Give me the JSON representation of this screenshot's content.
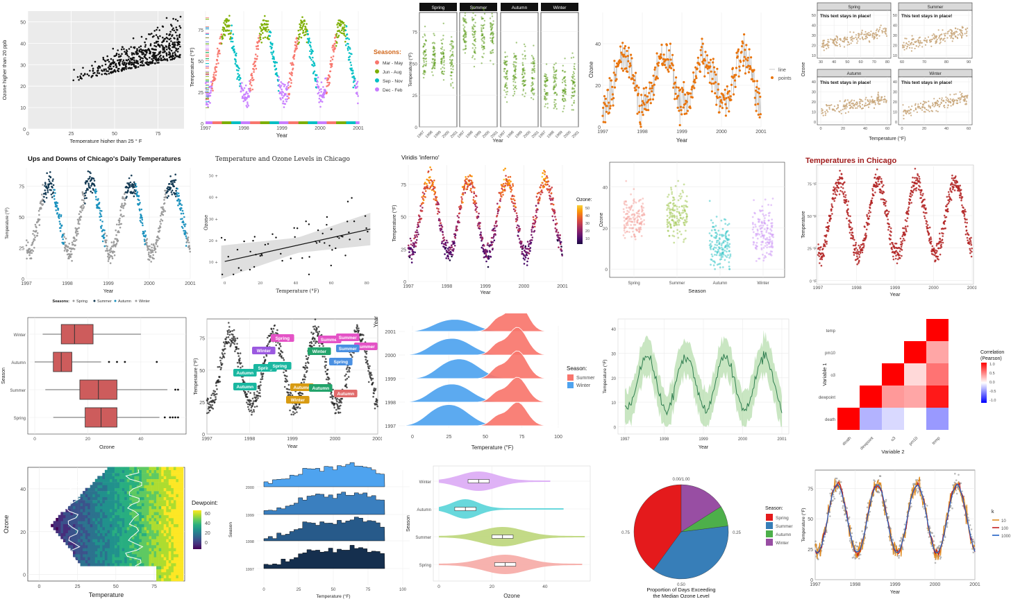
{
  "colors": {
    "panel_grey": "#ebebeb",
    "grid_light": "#e6e6e6",
    "spring": "#f8766d",
    "summer": "#7cae00",
    "autumn": "#00bfc4",
    "winter": "#c77cff",
    "orange": "#e9740c",
    "green": "#5b9a1a",
    "tan": "#c9a77c",
    "darkred": "#b22222",
    "boxfill": "#cd5c5c",
    "blue": "#4ea3ef",
    "salmon": "#f8766d",
    "setred": "#e41a1c",
    "setblue": "#377eb8",
    "setgreen": "#4daf4a",
    "setpurple": "#984ea3"
  },
  "chart_data": [
    {
      "id": "p1",
      "type": "scatter",
      "xlabel": "Temperature higher than 25 ° F",
      "ylabel": "Ozone higher than 20 ppb",
      "xlim": [
        0,
        90
      ],
      "ylim": [
        0,
        55
      ],
      "xticks": [
        "0",
        "25",
        "50",
        "75"
      ],
      "yticks": [
        "0",
        "10",
        "20",
        "30",
        "40",
        "50"
      ],
      "grid": "grey-background"
    },
    {
      "id": "p2",
      "type": "scatter",
      "ylabel": "Temperature (°F)",
      "xlabel": "Year",
      "xticks": [
        "1997",
        "1998",
        "1999",
        "2000",
        "2001"
      ],
      "yticks": [
        "0",
        "25",
        "50",
        "75"
      ],
      "legend_title": "Seasons:",
      "legend_placement": "right",
      "series": [
        {
          "name": "Mar - May",
          "color": "#f8766d"
        },
        {
          "name": "Jun - Aug",
          "color": "#7cae00"
        },
        {
          "name": "Sep - Nov",
          "color": "#00bfc4"
        },
        {
          "name": "Dec - Feb",
          "color": "#c77cff"
        }
      ]
    },
    {
      "id": "p3",
      "type": "scatter",
      "facets": [
        "Spring",
        "Summer",
        "Autumn",
        "Winter"
      ],
      "ylabel": "Temperature (°F)",
      "xlabel": "Year",
      "xticks": [
        "1997",
        "1998",
        "1999",
        "2000",
        "2001"
      ],
      "yticks": [
        "0",
        "25",
        "50",
        "75"
      ]
    },
    {
      "id": "p4",
      "type": "line",
      "ylabel": "Ozone",
      "xlabel": "Year",
      "xticks": [
        "1997",
        "1998",
        "1999",
        "2000",
        "2001"
      ],
      "yticks": [
        "0",
        "20",
        "40"
      ],
      "series": [
        {
          "name": "line"
        },
        {
          "name": "points"
        }
      ],
      "legend_placement": "right"
    },
    {
      "id": "p5",
      "type": "scatter",
      "facets": [
        "Spring",
        "Summer",
        "Autumn",
        "Winter"
      ],
      "annotation": "This text stays in place!",
      "ylabel": "Ozone",
      "xlabel": "Temperature (°F)",
      "facet_xticks": [
        [
          "30",
          "40",
          "50",
          "60",
          "70",
          "80"
        ],
        [
          "60",
          "70",
          "80",
          "90"
        ],
        [
          "0",
          "20",
          "40",
          "60"
        ],
        [
          "0",
          "20",
          "40",
          "60"
        ]
      ],
      "facet_yticks": [
        [
          "10",
          "20",
          "30",
          "40",
          "50"
        ],
        [
          "10",
          "20",
          "30",
          "40",
          "50"
        ],
        [
          "0",
          "10",
          "20",
          "30",
          "40"
        ],
        [
          "0",
          "10",
          "20",
          "30",
          "40"
        ]
      ]
    },
    {
      "id": "p6",
      "type": "scatter",
      "title": "Ups and Downs of Chicago's Daily Temperatures",
      "ylabel": "Temperature (°F)",
      "xlabel": "Year",
      "xticks": [
        "1997",
        "1998",
        "1999",
        "2000",
        "2001"
      ],
      "yticks": [
        "0",
        "25",
        "50",
        "75"
      ],
      "legend_title": "Seasons:",
      "legend_placement": "bottom",
      "series": [
        {
          "name": "Spring",
          "color": "#9a9a9a"
        },
        {
          "name": "Summer",
          "color": "#0f3650"
        },
        {
          "name": "Autumn",
          "color": "#178fbd"
        },
        {
          "name": "Winter",
          "color": "#9a9a9a"
        }
      ]
    },
    {
      "id": "p7",
      "type": "scatter",
      "title": "Temperature and Ozone Levels in Chicago",
      "ylabel": "Ozone",
      "xlabel": "Temperature (°F)",
      "xticks": [
        "0",
        "20",
        "40",
        "60",
        "80"
      ],
      "yticks": [
        "10 +",
        "20 +",
        "30 +",
        "40 +",
        "50 +"
      ],
      "fit": {
        "method": "linear",
        "x": [
          0,
          82
        ],
        "y": [
          10,
          25
        ]
      }
    },
    {
      "id": "p8",
      "type": "scatter",
      "title": "Viridis 'inferno'",
      "ylabel": "Temperature (°F)",
      "xlabel": "Year",
      "xticks": [
        "1997",
        "1998",
        "1999",
        "2000",
        "2001"
      ],
      "yticks": [
        "0",
        "25",
        "50",
        "75"
      ],
      "legend_title": "Ozone:",
      "legend_ticks": [
        "50",
        "40",
        "30",
        "20",
        "10"
      ]
    },
    {
      "id": "p9",
      "type": "scatter",
      "ylabel": "Ozone",
      "xlabel": "Season",
      "categories": [
        "Spring",
        "Summer",
        "Autumn",
        "Winter"
      ],
      "yticks": [
        "0",
        "20",
        "40"
      ],
      "series_colors": [
        "#f4a6a0",
        "#a3c955",
        "#3bc6c9",
        "#cf9cf5"
      ]
    },
    {
      "id": "p10",
      "type": "scatter",
      "title": "Temperatures in Chicago",
      "ylabel": "Temperature",
      "xlabel": "Year",
      "xticks": [
        "1997",
        "1998",
        "1999",
        "2000",
        "2001"
      ],
      "yticks": [
        "0 °F",
        "25 °F",
        "50 °F",
        "75 °F"
      ]
    },
    {
      "id": "p11",
      "type": "box",
      "ylabel": "Season",
      "xlabel": "Ozone",
      "categories": [
        "Winter",
        "Autumn",
        "Summer",
        "Spring"
      ],
      "xticks": [
        "0",
        "20",
        "40"
      ],
      "boxes": [
        {
          "name": "Winter",
          "min": 3,
          "q1": 10,
          "median": 15,
          "q3": 22,
          "max": 40,
          "outliers": []
        },
        {
          "name": "Autumn",
          "min": 0,
          "q1": 7,
          "median": 10,
          "q3": 14,
          "max": 25,
          "outliers": [
            28,
            31,
            34,
            46
          ]
        },
        {
          "name": "Summer",
          "min": 4,
          "q1": 17,
          "median": 24,
          "q3": 31,
          "max": 50,
          "outliers": [
            53,
            54
          ]
        },
        {
          "name": "Spring",
          "min": 7,
          "q1": 19,
          "median": 25,
          "q3": 31,
          "max": 47,
          "outliers": [
            49,
            51,
            52,
            53,
            54
          ]
        }
      ]
    },
    {
      "id": "p12",
      "type": "scatter",
      "ylabel": "Temperature (°F)",
      "xlabel": "Year",
      "xticks": [
        "1997",
        "1998",
        "1999",
        "2000",
        "2001"
      ],
      "yticks": [
        "0",
        "25",
        "50",
        "75"
      ],
      "annotations": [
        {
          "label": "Summer",
          "season": "Summer"
        },
        {
          "label": "Summer",
          "season": "Summer"
        },
        {
          "label": "Summer",
          "season": "Summer"
        },
        {
          "label": "Summer",
          "season": "Summer"
        },
        {
          "label": "Spring",
          "season": "Spring"
        },
        {
          "label": "Spring",
          "season": "Spring"
        },
        {
          "label": "Spring",
          "season": "Spring"
        },
        {
          "label": "Spring",
          "season": "Spring"
        },
        {
          "label": "Winter",
          "season": "Winter"
        },
        {
          "label": "Winter",
          "season": "Winter"
        },
        {
          "label": "Autumn",
          "season": "Autumn"
        },
        {
          "label": "Autumn",
          "season": "Autumn"
        },
        {
          "label": "Autumn",
          "season": "Autumn"
        },
        {
          "label": "Autumn",
          "season": "Autumn"
        },
        {
          "label": "Autumn",
          "season": "Autumn"
        },
        {
          "label": "Winter",
          "season": "Winter"
        }
      ]
    },
    {
      "id": "p13",
      "type": "area",
      "subtype": "ridgeline",
      "ylabel": "Year",
      "xlabel": "Temperature (°F)",
      "categories": [
        "2001",
        "2000",
        "1999",
        "1998",
        "1997"
      ],
      "xticks": [
        "0",
        "25",
        "50",
        "75",
        "100"
      ],
      "legend_title": "Season:",
      "series": [
        {
          "name": "Summer",
          "color": "#f8766d"
        },
        {
          "name": "Winter",
          "color": "#4ea3ef"
        }
      ]
    },
    {
      "id": "p14",
      "type": "line",
      "ylabel": "Temperature (°F)",
      "xlabel": "Year",
      "xticks": [
        "1997",
        "1998",
        "1999",
        "2000",
        "2001"
      ],
      "yticks": [
        "0",
        "10",
        "20",
        "30",
        "40"
      ]
    },
    {
      "id": "p15",
      "type": "heatmap",
      "ylabel": "Variable 1",
      "xlabel": "Variable 2",
      "categories": [
        "death",
        "dewpoint",
        "o3",
        "pm10",
        "temp"
      ],
      "legend_title": "Correlation\n(Pearson)",
      "legend_ticks": [
        "1.0",
        "0.5",
        "0.0",
        "-0.5",
        "-1.0"
      ],
      "cells": [
        [
          {
            "x": "death",
            "y": "death",
            "r": 1.0
          }
        ],
        [
          {
            "x": "dewpoint",
            "y": "death",
            "r": -0.3
          },
          {
            "x": "dewpoint",
            "y": "dewpoint",
            "r": 1.0
          }
        ],
        [
          {
            "x": "o3",
            "y": "death",
            "r": -0.15
          },
          {
            "x": "o3",
            "y": "dewpoint",
            "r": 0.4
          },
          {
            "x": "o3",
            "y": "o3",
            "r": 1.0
          }
        ],
        [
          {
            "x": "pm10",
            "y": "death",
            "r": 0.0
          },
          {
            "x": "pm10",
            "y": "dewpoint",
            "r": 0.35
          },
          {
            "x": "pm10",
            "y": "o3",
            "r": 0.15
          },
          {
            "x": "pm10",
            "y": "pm10",
            "r": 1.0
          }
        ],
        [
          {
            "x": "temp",
            "y": "death",
            "r": -0.4
          },
          {
            "x": "temp",
            "y": "dewpoint",
            "r": 0.9
          },
          {
            "x": "temp",
            "y": "o3",
            "r": 0.55
          },
          {
            "x": "temp",
            "y": "pm10",
            "r": 0.35
          },
          {
            "x": "temp",
            "y": "temp",
            "r": 1.0
          }
        ]
      ]
    },
    {
      "id": "p16",
      "type": "heatmap",
      "ylabel": "Ozone",
      "xlabel": "Temperature",
      "xticks": [
        "0",
        "25",
        "50",
        "75"
      ],
      "yticks": [
        "0",
        "20",
        "40"
      ],
      "legend_title": "Dewpoint:",
      "legend_ticks": [
        "60",
        "40",
        "20",
        "0"
      ]
    },
    {
      "id": "p17",
      "type": "bar",
      "subtype": "ridgeline-histogram",
      "ylabel": "Season",
      "xlabel": "Temperature (°F)",
      "categories": [
        "2000",
        "1999",
        "1998",
        "1997"
      ],
      "xticks": [
        "0",
        "25",
        "50",
        "75",
        "100"
      ]
    },
    {
      "id": "p18",
      "type": "box",
      "subtype": "violin",
      "ylabel": "Season",
      "xlabel": "Ozone",
      "categories": [
        "Winter",
        "Autumn",
        "Summer",
        "Spring"
      ],
      "xticks": [
        "0",
        "20",
        "40"
      ]
    },
    {
      "id": "p19",
      "type": "pie",
      "title": "Proportion of Days Exceeding\nthe Median Ozone Level",
      "tick_labels": [
        "0.00/1.00",
        "0.25",
        "0.50",
        "0.75"
      ],
      "legend_title": "Season:",
      "series": [
        {
          "name": "Spring",
          "value": 0.4,
          "color": "#e41a1c"
        },
        {
          "name": "Summer",
          "value": 0.37,
          "color": "#377eb8"
        },
        {
          "name": "Autumn",
          "value": 0.07,
          "color": "#4daf4a"
        },
        {
          "name": "Winter",
          "value": 0.16,
          "color": "#984ea3"
        }
      ]
    },
    {
      "id": "p20",
      "type": "line",
      "ylabel": "Temperature (°F)",
      "xlabel": "Year",
      "xticks": [
        "1997",
        "1998",
        "1999",
        "2000",
        "2001"
      ],
      "yticks": [
        "0",
        "25",
        "50",
        "75"
      ],
      "legend_title": "k",
      "series": [
        {
          "name": "10",
          "color": "#e08a1e"
        },
        {
          "name": "100",
          "color": "#c21f1f"
        },
        {
          "name": "1000",
          "color": "#1f5fc4"
        }
      ]
    }
  ]
}
